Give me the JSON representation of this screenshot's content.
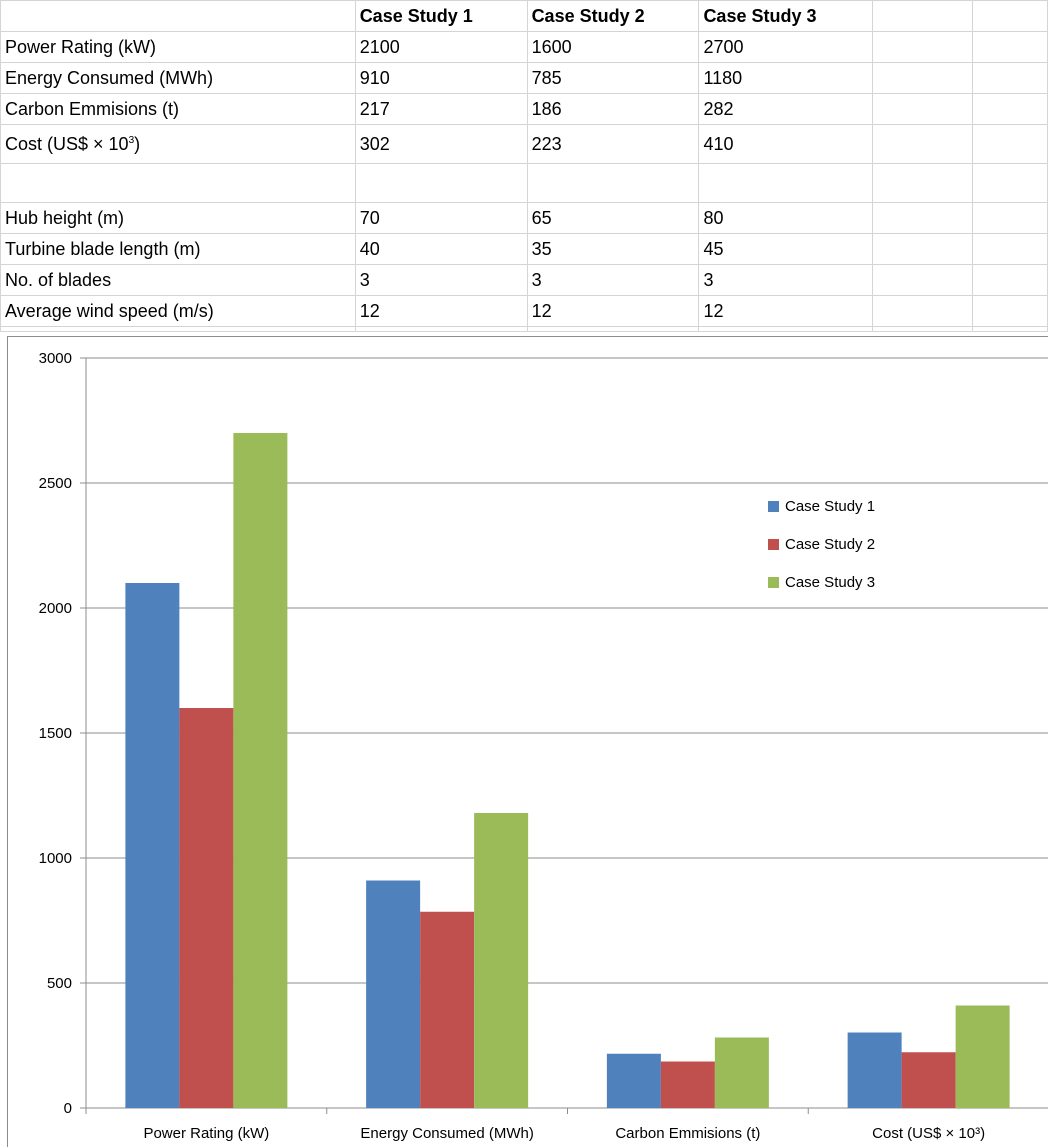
{
  "table": {
    "headers": [
      "",
      "Case Study 1",
      "Case Study 2",
      "Case Study 3",
      "",
      ""
    ],
    "rows": [
      {
        "label": "Power Rating (kW)",
        "values": [
          "2100",
          "1600",
          "2700"
        ]
      },
      {
        "label": "Energy Consumed (MWh)",
        "values": [
          "910",
          "785",
          "1180"
        ]
      },
      {
        "label": "Carbon Emmisions (t)",
        "values": [
          "217",
          "186",
          "282"
        ]
      },
      {
        "label_base": "Cost (US$ × 10",
        "label_sup": "3",
        "label_end": ")",
        "values": [
          "302",
          "223",
          "410"
        ]
      },
      {
        "label": "",
        "values": [
          "",
          "",
          ""
        ]
      },
      {
        "label": "Hub height (m)",
        "values": [
          "70",
          "65",
          "80"
        ]
      },
      {
        "label": "Turbine blade length (m)",
        "values": [
          "40",
          "35",
          "45"
        ]
      },
      {
        "label": "No. of blades",
        "values": [
          "3",
          "3",
          "3"
        ]
      },
      {
        "label": "Average wind speed (m/s)",
        "values": [
          "12",
          "12",
          "12"
        ]
      }
    ]
  },
  "chart_data": {
    "type": "bar",
    "categories": [
      "Power Rating (kW)",
      "Energy Consumed (MWh)",
      "Carbon Emmisions (t)",
      "Cost (US$ × 10³)"
    ],
    "series": [
      {
        "name": "Case Study 1",
        "values": [
          2100,
          910,
          217,
          302
        ],
        "color": "#4f81bd"
      },
      {
        "name": "Case Study 2",
        "values": [
          1600,
          785,
          186,
          223
        ],
        "color": "#c0504d"
      },
      {
        "name": "Case Study 3",
        "values": [
          2700,
          1180,
          282,
          410
        ],
        "color": "#9bbb59"
      }
    ],
    "yticks": [
      0,
      500,
      1000,
      1500,
      2000,
      2500,
      3000
    ],
    "ylim": [
      0,
      3000
    ],
    "grid": true,
    "legend": "right",
    "title": "",
    "xlabel": "",
    "ylabel": ""
  }
}
